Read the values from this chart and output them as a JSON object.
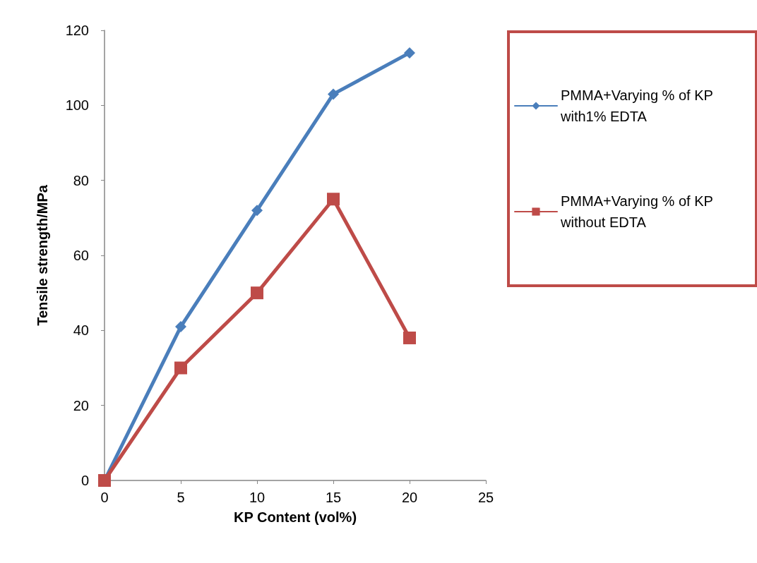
{
  "chart_data": {
    "type": "line",
    "xlabel": "KP Content (vol%)",
    "ylabel": "Tensile strength/MPa",
    "x": [
      0,
      5,
      10,
      15,
      20
    ],
    "series": [
      {
        "name": "PMMA+Varying % of KP with1% EDTA",
        "color": "#4a7ebb",
        "marker": "diamond",
        "values": [
          0,
          41,
          72,
          103,
          114
        ]
      },
      {
        "name": "PMMA+Varying % of KP without EDTA",
        "color": "#be4b48",
        "marker": "square",
        "values": [
          0,
          30,
          50,
          75,
          38
        ]
      }
    ],
    "xlim": [
      0,
      25
    ],
    "xticks": [
      0,
      5,
      10,
      15,
      20,
      25
    ],
    "ylim": [
      0,
      120
    ],
    "yticks": [
      0,
      20,
      40,
      60,
      80,
      100,
      120
    ],
    "grid": false,
    "legend": "right",
    "line_style": "solid"
  }
}
